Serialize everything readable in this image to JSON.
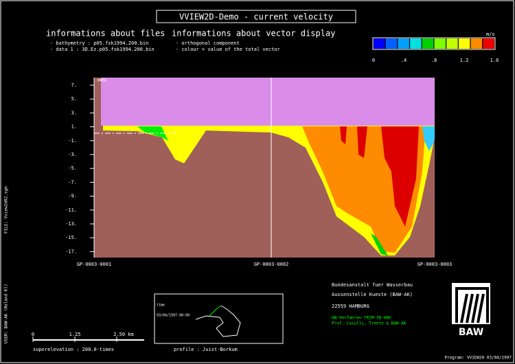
{
  "header": {
    "title": "VVIEW2D-Demo - current velocity"
  },
  "files": {
    "heading": "informations about files",
    "lines": [
      "- bathymetry :    p05.fsk1994.200.bin",
      "- data 1 :    3D.Ez.p05.fsk1994.200.bin"
    ]
  },
  "vectors": {
    "heading": "informations about vector display",
    "lines": [
      "- orthogonal component",
      "- colour = value of the total vector"
    ]
  },
  "color_scale": {
    "unit": "m/s",
    "labels": [
      "0",
      ".4",
      ".8",
      "1.2",
      "1.6"
    ]
  },
  "plot": {
    "surface_label": "mWSL",
    "y_ticks": [
      "7.",
      "5.",
      "3.",
      "1.",
      "-1.",
      "-3.",
      "-5.",
      "-7.",
      "-9.",
      "-11.",
      "-13.",
      "-15.",
      "-17."
    ],
    "stations": [
      "GP-0003-0001",
      "GP-0003-0002",
      "GP-0003-0003"
    ]
  },
  "institute": {
    "lines": [
      "Bundesanstalt fuer Wasserbau",
      "Aussenstelle Kueste (BAW-AK)",
      "22559 HAMBURG"
    ],
    "model_lines": [
      "HN-Verfahren TRIM-3D-HNV",
      "Prof. Casulli, Trento & BAW-AK"
    ],
    "logo": "BAW"
  },
  "scale_bar": {
    "labels": [
      "0",
      "1.25",
      "2.50 km"
    ],
    "superelevation": "superelevation :    200.0-times"
  },
  "map": {
    "time_label": "time",
    "time": "03/04/1997-00:00",
    "profile": "profile :    Juist-Borkum"
  },
  "margin": {
    "file": "FILE: Vview2d02.sgm",
    "user": "USER: BAW-AK (Roland Kl)"
  },
  "footer": {
    "program": "Program: VVIEW20    03/04/1997"
  }
}
